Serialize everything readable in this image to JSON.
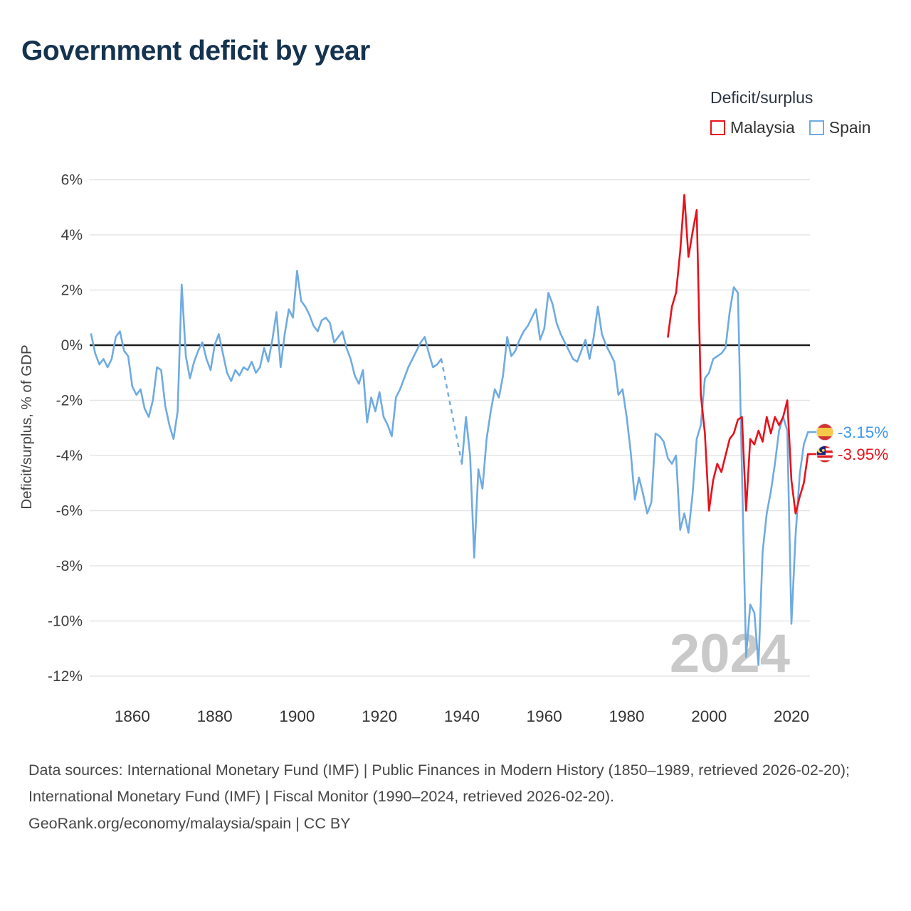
{
  "page": {
    "title": "Government deficit by year",
    "watermark": "2024",
    "footer": {
      "sources": "Data sources: International Monetary Fund (IMF) | Public Finances in Modern History (1850–1989, retrieved 2026-02-20); International Monetary Fund (IMF) | Fiscal Monitor (1990–2024, retrieved 2026-02-20).",
      "attribution": "GeoRank.org/economy/malaysia/spain | CC BY"
    }
  },
  "legend": {
    "title": "Deficit/surplus",
    "items": [
      {
        "label": "Malaysia",
        "color": "#e8111a"
      },
      {
        "label": "Spain",
        "color": "#6fabe2"
      }
    ]
  },
  "chart_data": {
    "type": "line",
    "title": "Government deficit by year",
    "ylabel": "Deficit/surplus, % of GDP",
    "xlabel": "",
    "ylim": [
      -12,
      6
    ],
    "xlim": [
      1850,
      2024
    ],
    "grid": true,
    "legend_position": "top-right",
    "yticks": [
      6,
      4,
      2,
      0,
      -2,
      -4,
      -6,
      -8,
      -10,
      -12
    ],
    "xticks": [
      1860,
      1880,
      1900,
      1920,
      1940,
      1960,
      1980,
      2000,
      2020
    ],
    "series": [
      {
        "name": "Malaysia",
        "color": "#e8111a",
        "label_color": "#e8111a",
        "flag": "malaysia",
        "start_year": 1990,
        "end_label": "-3.95%",
        "values": [
          0.3,
          1.4,
          1.9,
          3.4,
          5.45,
          3.2,
          4.1,
          4.9,
          -1.8,
          -3.2,
          -6.0,
          -4.9,
          -4.3,
          -4.6,
          -4.0,
          -3.4,
          -3.2,
          -2.7,
          -2.6,
          -6.0,
          -3.4,
          -3.6,
          -3.1,
          -3.5,
          -2.6,
          -3.2,
          -2.6,
          -2.9,
          -2.6,
          -2.0,
          -4.9,
          -6.1,
          -5.5,
          -5.0,
          -3.95
        ]
      },
      {
        "name": "Spain",
        "color": "#6fabe2",
        "label_color": "#3d97e8",
        "flag": "spain",
        "start_year": 1850,
        "end_label": "-3.15%",
        "gap_dashed": [
          1935,
          1940
        ],
        "values": [
          0.4,
          -0.3,
          -0.7,
          -0.5,
          -0.8,
          -0.5,
          0.3,
          0.5,
          -0.2,
          -0.4,
          -1.5,
          -1.8,
          -1.6,
          -2.3,
          -2.6,
          -2.0,
          -0.8,
          -0.9,
          -2.2,
          -2.9,
          -3.4,
          -2.4,
          2.2,
          -0.4,
          -1.2,
          -0.6,
          -0.2,
          0.1,
          -0.5,
          -0.9,
          0.0,
          0.4,
          -0.3,
          -1.0,
          -1.3,
          -0.9,
          -1.1,
          -0.8,
          -0.9,
          -0.6,
          -1.0,
          -0.8,
          -0.1,
          -0.6,
          0.2,
          1.2,
          -0.8,
          0.4,
          1.3,
          1.0,
          2.7,
          1.6,
          1.4,
          1.1,
          0.7,
          0.5,
          0.9,
          1.0,
          0.8,
          0.1,
          0.3,
          0.5,
          -0.1,
          -0.5,
          -1.1,
          -1.4,
          -0.9,
          -2.8,
          -1.9,
          -2.4,
          -1.7,
          -2.6,
          -2.9,
          -3.3,
          -1.9,
          -1.6,
          -1.2,
          -0.8,
          -0.5,
          -0.2,
          0.1,
          0.3,
          -0.3,
          -0.8,
          -0.7,
          -0.5,
          null,
          null,
          null,
          null,
          -4.3,
          -2.6,
          -4.0,
          -7.7,
          -4.5,
          -5.2,
          -3.4,
          -2.4,
          -1.6,
          -1.9,
          -1.1,
          0.3,
          -0.4,
          -0.2,
          0.2,
          0.5,
          0.7,
          1.0,
          1.3,
          0.2,
          0.6,
          1.9,
          1.5,
          0.8,
          0.4,
          0.1,
          -0.2,
          -0.5,
          -0.6,
          -0.2,
          0.2,
          -0.5,
          0.3,
          1.4,
          0.4,
          0.0,
          -0.3,
          -0.6,
          -1.8,
          -1.6,
          -2.6,
          -3.9,
          -5.6,
          -4.8,
          -5.4,
          -6.1,
          -5.7,
          -3.2,
          -3.3,
          -3.5,
          -4.1,
          -4.3,
          -4.0,
          -6.7,
          -6.1,
          -6.8,
          -5.4,
          -3.4,
          -2.9,
          -1.2,
          -1.0,
          -0.5,
          -0.4,
          -0.3,
          -0.1,
          1.2,
          2.1,
          1.9,
          -4.6,
          -11.3,
          -9.4,
          -9.7,
          -11.6,
          -7.5,
          -6.1,
          -5.3,
          -4.3,
          -3.1,
          -2.6,
          -3.1,
          -10.1,
          -6.9,
          -4.7,
          -3.6,
          -3.15
        ]
      }
    ]
  }
}
